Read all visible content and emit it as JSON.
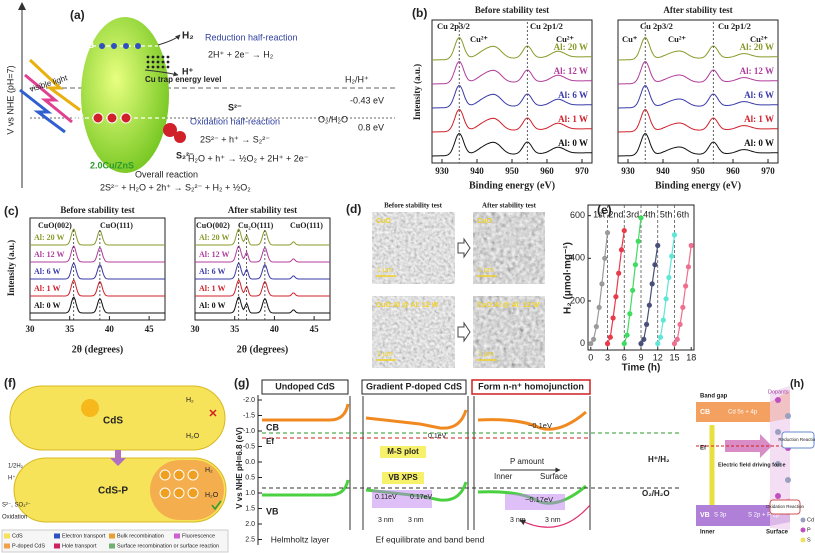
{
  "a": {
    "label": "(a)",
    "yaxis": "V vs NHE (pH=7)",
    "cb": "CB",
    "vb": "VB",
    "h2": "H₂",
    "reduction": "Reduction half-reaction",
    "red_eq": "2H⁺ + 2e⁻ → H₂",
    "hplus": "H⁺",
    "trap": "Cu trap energy level",
    "h2_couple": "H₂/H⁺",
    "h2_potential": "-0.43 eV",
    "light": "visible light",
    "s2": "S²⁻",
    "oxidation": "Oxidation half-reaction",
    "ox_eq": "2S²⁻ + h⁺ → S₂²⁻",
    "o2_couple": "O₂/H₂O",
    "o2_potential": "0.8 eV",
    "s22": "S₂²⁻",
    "catalyst": "2.0Cu/ZnS",
    "water_eq": "H₂O + h⁺ → ½O₂ + 2H⁺ + 2e⁻",
    "overall": "Overall reaction",
    "overall_eq": "2S²⁻ + H₂O + 2h⁺ → S₂²⁻ + H₂ + ½O₂"
  },
  "b": {
    "label": "(b)",
    "before": "Before stability test",
    "after": "After stability test",
    "p32": "Cu 2p3/2",
    "p12": "Cu 2p1/2",
    "cu2": "Cu²⁺",
    "cu1": "Cu⁺",
    "ylabel": "Intensity (a.u.)",
    "xlabel": "Binding energy (eV)",
    "xticks": [
      "930",
      "940",
      "950",
      "960",
      "970"
    ],
    "samples": [
      "Al: 20 W",
      "Al: 12 W",
      "Al: 6 W",
      "Al: 1 W",
      "Al: 0 W"
    ]
  },
  "c": {
    "label": "(c)",
    "before": "Before stability test",
    "after": "After stability test",
    "cuo002": "CuO(002)",
    "cuo111": "CuO(111)",
    "cu2o": "Cu₂O(111)",
    "ylabel": "Intensity (a.u.)",
    "xlabel": "2θ (degrees)",
    "xticks": [
      "30",
      "35",
      "40",
      "45"
    ],
    "samples": [
      "Al: 20 W",
      "Al: 12 W",
      "Al: 6 W",
      "Al: 1 W",
      "Al: 0 W"
    ]
  },
  "d": {
    "label": "(d)",
    "before": "Before stability test",
    "after": "After stability test",
    "cuo": "CuO",
    "scale": "1 μm",
    "doped": "CuO:Al @ Al: 12 W"
  },
  "chart_data": {
    "type": "line",
    "panel_label": "(e)",
    "annotations": [
      "1st",
      "2nd",
      "3rd",
      "4th",
      "5th",
      "6th"
    ],
    "x_label": "Time (h)",
    "y_label": "H₂ (μmol·mg⁻¹)",
    "xlim": [
      -0.5,
      18.5
    ],
    "ylim": [
      -30,
      650
    ],
    "xticks": [
      0,
      3,
      6,
      9,
      12,
      15,
      18
    ],
    "yticks": [
      0,
      200,
      400,
      600
    ],
    "series": [
      {
        "color": "#9a9a9a",
        "x": [
          0,
          0.5,
          1,
          1.5,
          2,
          2.5,
          3
        ],
        "values": [
          0,
          20,
          80,
          170,
          280,
          400,
          520
        ]
      },
      {
        "color": "#e83a4a",
        "x": [
          3,
          3.5,
          4,
          4.5,
          5,
          5.5,
          6
        ],
        "values": [
          0,
          30,
          120,
          220,
          330,
          440,
          530
        ]
      },
      {
        "color": "#3fdc60",
        "x": [
          6,
          6.5,
          7,
          7.5,
          8,
          8.5,
          9
        ],
        "values": [
          0,
          40,
          140,
          250,
          370,
          480,
          590
        ]
      },
      {
        "color": "#4a4f7a",
        "x": [
          9,
          9.5,
          10,
          10.5,
          11,
          11.5,
          12
        ],
        "values": [
          0,
          20,
          90,
          180,
          280,
          370,
          460
        ]
      },
      {
        "color": "#5fe6d6",
        "x": [
          12,
          12.5,
          13,
          13.5,
          14,
          14.5,
          15
        ],
        "values": [
          0,
          30,
          110,
          210,
          310,
          410,
          510
        ]
      },
      {
        "color": "#ee6f8f",
        "x": [
          15,
          15.5,
          16,
          16.5,
          17,
          17.5,
          18
        ],
        "values": [
          0,
          20,
          90,
          170,
          270,
          360,
          460
        ]
      }
    ]
  },
  "f": {
    "label": "(f)",
    "cds": "CdS",
    "cdsp": "CdS-P",
    "h2": "H₂",
    "h2o": "H₂O",
    "half_h2": "1/2H₂",
    "hplus": "H⁺",
    "sacrificial": "S²⁻, SO₃²⁻",
    "oxidation": "Oxidation",
    "legend": [
      "CdS",
      "P-doped CdS",
      "Electron transport",
      "Hole transport",
      "Bulk recombination",
      "Surface recombination or surface reaction",
      "Fluorescence"
    ]
  },
  "g": {
    "label": "(g)",
    "undoped": "Undoped CdS",
    "gradient": "Gradient P-doped CdS",
    "homojunction": "Form n-n⁺ homojunction",
    "yaxis": "V vs NHE pH=6.8 (eV)",
    "yticks": [
      "-2.0",
      "-1.5",
      "-1.0",
      "-0.5",
      "0.0",
      "0.5",
      "1.0",
      "1.5",
      "2.0",
      "2.5"
    ],
    "cb": "CB",
    "ef": "Ef",
    "vb": "VB",
    "shift_cb": "0.1eV",
    "ms": "M-S plot",
    "vbxps": "VB XPS",
    "shift_a": "0.11eV",
    "shift_b": "0.17eV",
    "bend_cb": "~0.1eV",
    "p_amount": "P amount",
    "inner": "Inner",
    "surface": "Surface",
    "h_couple": "H⁺/H₂",
    "o_couple": "O₂/H₂O",
    "bend_vb": "~0.17eV",
    "width": "3 nm",
    "helmholtz": "Helmholtz layer",
    "equilibrate": "Ef equilibrate and band bend"
  },
  "h": {
    "label": "(h)",
    "band_gap": "Band gap",
    "cb": "CB",
    "cb_orbital": "Cd 5s + 4p",
    "dopants": "Dopants",
    "ef": "Ef",
    "field": "Electric field driving force",
    "vb": "VB",
    "s3p": "S 3p",
    "vb_orbital": "S 2p + P 2p",
    "inner": "Inner",
    "surface": "Surface",
    "reduction": "Reduction Reaction",
    "oxidation": "Oxidation Reaction",
    "legend": [
      "Cd",
      "P",
      "S"
    ]
  }
}
